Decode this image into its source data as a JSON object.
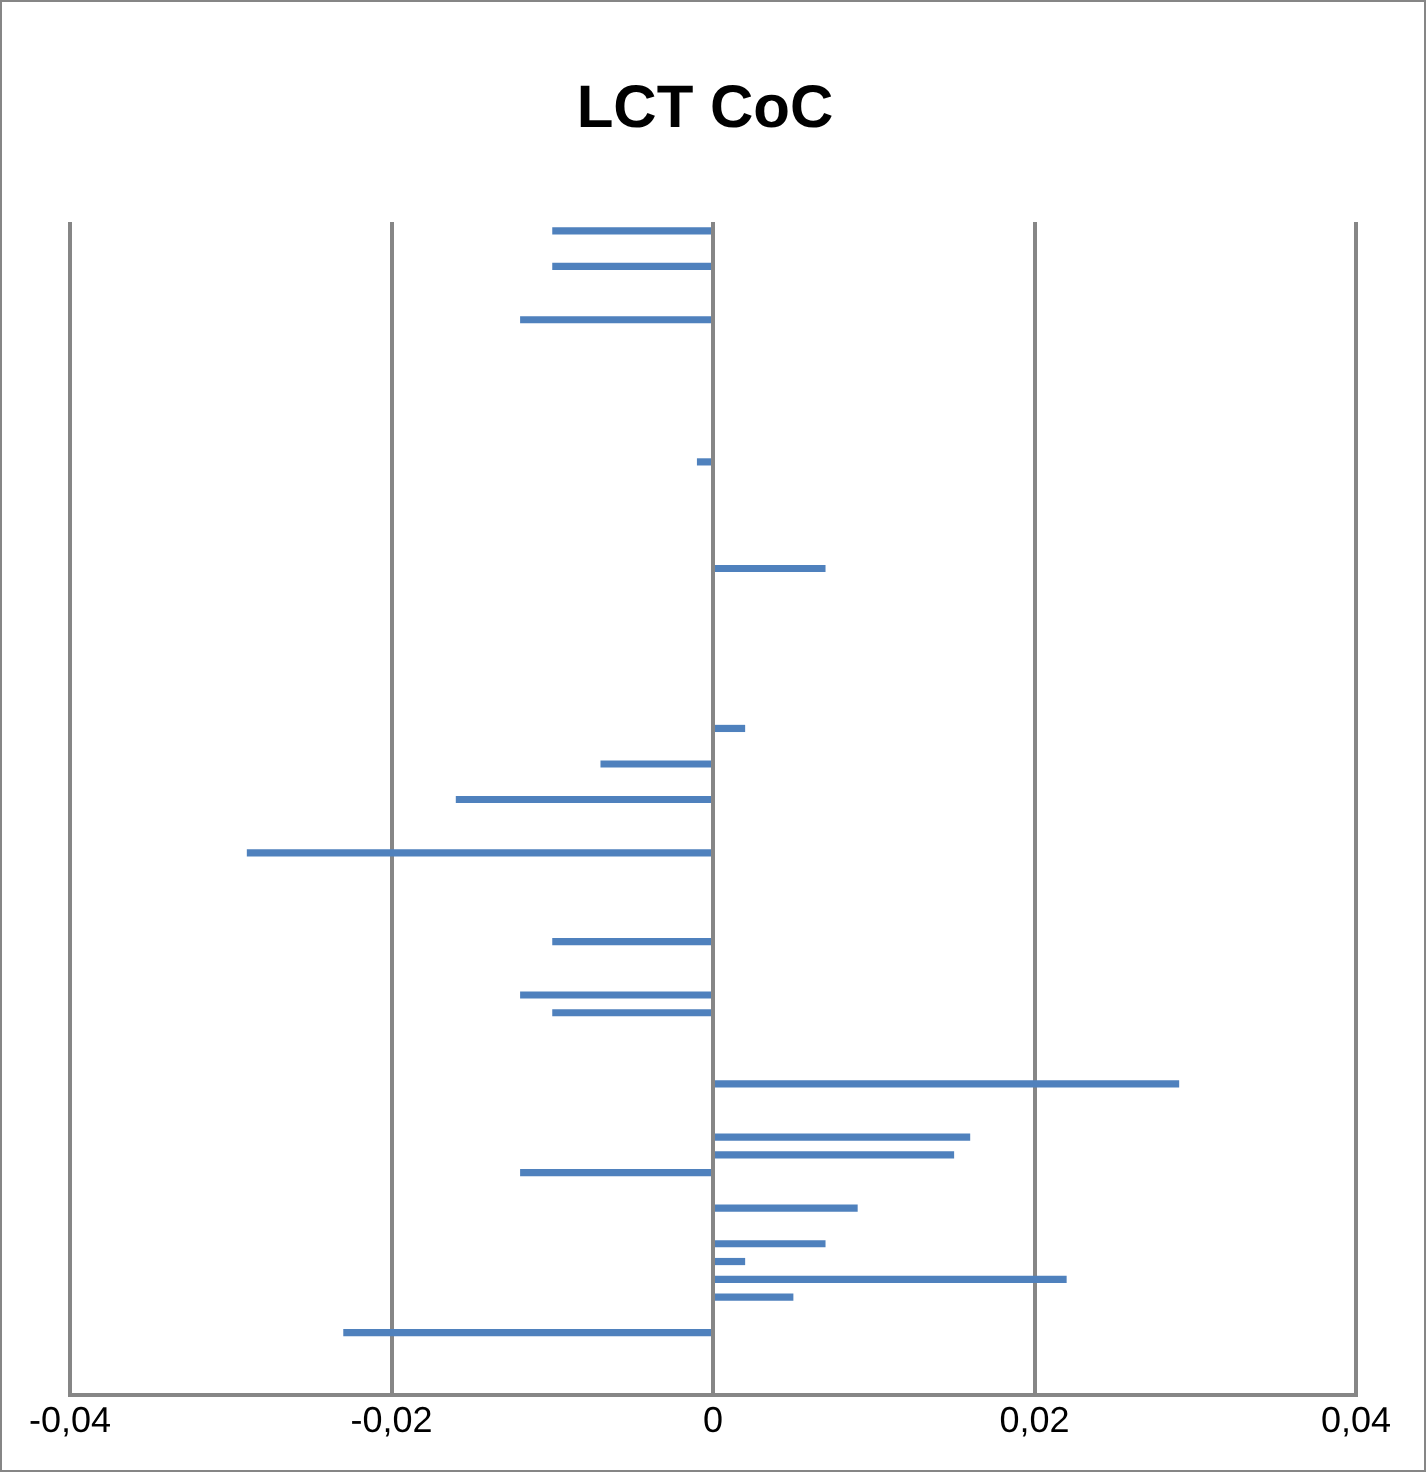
{
  "chart_data": {
    "type": "bar",
    "orientation": "horizontal",
    "title": "LCT CoC",
    "categories": [
      null,
      null,
      null,
      null,
      null,
      null,
      null,
      null,
      null,
      null,
      null,
      null,
      null,
      null,
      null,
      null,
      null,
      null,
      null,
      null,
      null,
      null,
      null,
      null,
      null,
      null,
      null,
      null,
      null,
      null,
      null,
      null,
      null,
      null,
      null,
      null,
      null,
      null,
      null,
      null,
      null,
      null,
      null,
      null,
      null,
      null,
      null,
      null,
      null,
      null,
      null,
      null,
      null,
      null,
      null,
      null,
      null,
      null,
      null,
      null,
      null,
      null,
      null,
      null,
      null,
      null
    ],
    "values": [
      -0.01,
      null,
      -0.01,
      null,
      null,
      -0.012,
      null,
      null,
      null,
      null,
      null,
      null,
      null,
      -0.001,
      null,
      null,
      null,
      null,
      null,
      0.007,
      null,
      null,
      null,
      null,
      null,
      null,
      null,
      null,
      0.002,
      null,
      -0.007,
      null,
      -0.016,
      null,
      null,
      -0.029,
      null,
      null,
      null,
      null,
      -0.01,
      null,
      null,
      -0.012,
      -0.01,
      null,
      null,
      null,
      0.029,
      null,
      null,
      0.016,
      0.015,
      -0.012,
      null,
      0.009,
      null,
      0.007,
      0.002,
      0.022,
      0.005,
      null,
      -0.023,
      null,
      null,
      null
    ],
    "color": "#4f81bd",
    "xlim": [
      -0.04,
      0.04
    ],
    "xticks": [
      {
        "value": -0.04,
        "label": "-0,04"
      },
      {
        "value": -0.02,
        "label": "-0,02"
      },
      0,
      {
        "value": 0.02,
        "label": "0,02"
      },
      {
        "value": 0.04,
        "label": "0,04"
      }
    ],
    "grid": "x",
    "legend": false,
    "tick_labels": "x"
  }
}
